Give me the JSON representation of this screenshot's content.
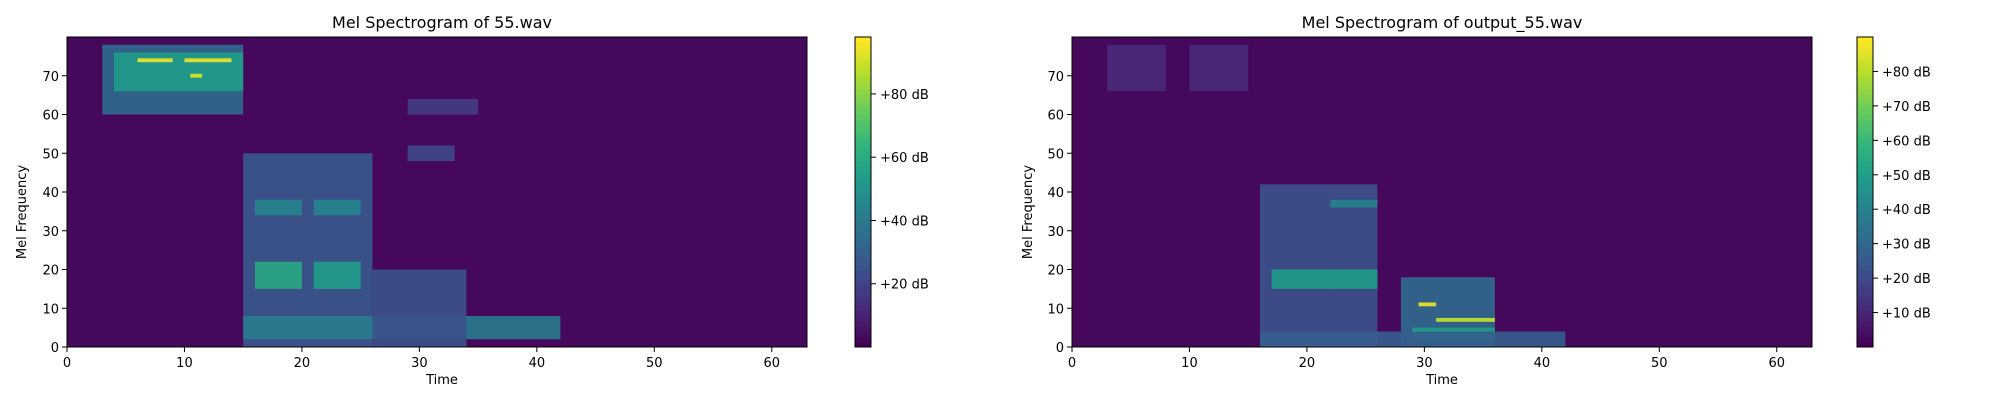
{
  "chart_data": [
    {
      "type": "heatmap",
      "title": "Mel Spectrogram of 55.wav",
      "xlabel": "Time",
      "ylabel": "Mel Frequency",
      "x_ticks": [
        0,
        10,
        20,
        30,
        40,
        50,
        60
      ],
      "y_ticks": [
        0,
        10,
        20,
        30,
        40,
        50,
        60,
        70
      ],
      "xlim": [
        0,
        63
      ],
      "ylim": [
        0,
        80
      ],
      "colormap": "viridis",
      "colorbar": {
        "format": "%+2.0f dB",
        "range": [
          0,
          98
        ],
        "ticks": [
          20,
          40,
          60,
          80
        ],
        "tick_labels": [
          "+20 dB",
          "+40 dB",
          "+60 dB",
          "+80 dB"
        ]
      },
      "energy_blobs": [
        {
          "t": [
            3,
            15
          ],
          "m": [
            60,
            78
          ],
          "level": 0.35
        },
        {
          "t": [
            4,
            15
          ],
          "m": [
            66,
            76
          ],
          "level": 0.55
        },
        {
          "t": [
            6,
            9
          ],
          "m": [
            73.5,
            74.5
          ],
          "level": 0.98
        },
        {
          "t": [
            10,
            14
          ],
          "m": [
            73.5,
            74.5
          ],
          "level": 0.98
        },
        {
          "t": [
            10.5,
            11.5
          ],
          "m": [
            69.5,
            70.5
          ],
          "level": 0.95
        },
        {
          "t": [
            15,
            26
          ],
          "m": [
            0,
            50
          ],
          "level": 0.28
        },
        {
          "t": [
            16,
            20
          ],
          "m": [
            15,
            22
          ],
          "level": 0.6
        },
        {
          "t": [
            21,
            25
          ],
          "m": [
            15,
            22
          ],
          "level": 0.55
        },
        {
          "t": [
            16,
            20
          ],
          "m": [
            34,
            38
          ],
          "level": 0.45
        },
        {
          "t": [
            21,
            25
          ],
          "m": [
            34,
            38
          ],
          "level": 0.45
        },
        {
          "t": [
            15,
            42
          ],
          "m": [
            2,
            8
          ],
          "level": 0.42
        },
        {
          "t": [
            26,
            34
          ],
          "m": [
            0,
            20
          ],
          "level": 0.25
        },
        {
          "t": [
            29,
            33
          ],
          "m": [
            48,
            52
          ],
          "level": 0.22
        },
        {
          "t": [
            29,
            35
          ],
          "m": [
            60,
            64
          ],
          "level": 0.18
        }
      ]
    },
    {
      "type": "heatmap",
      "title": "Mel Spectrogram of output_55.wav",
      "xlabel": "Time",
      "ylabel": "Mel Frequency",
      "x_ticks": [
        0,
        10,
        20,
        30,
        40,
        50,
        60
      ],
      "y_ticks": [
        0,
        10,
        20,
        30,
        40,
        50,
        60,
        70
      ],
      "xlim": [
        0,
        63
      ],
      "ylim": [
        0,
        80
      ],
      "colormap": "viridis",
      "colorbar": {
        "format": "%+2.0f dB",
        "range": [
          0,
          90
        ],
        "ticks": [
          10,
          20,
          30,
          40,
          50,
          60,
          70,
          80
        ],
        "tick_labels": [
          "+10 dB",
          "+20 dB",
          "+30 dB",
          "+40 dB",
          "+50 dB",
          "+60 dB",
          "+70 dB",
          "+80 dB"
        ]
      },
      "energy_blobs": [
        {
          "t": [
            3,
            8
          ],
          "m": [
            66,
            78
          ],
          "level": 0.12
        },
        {
          "t": [
            10,
            15
          ],
          "m": [
            66,
            78
          ],
          "level": 0.12
        },
        {
          "t": [
            16,
            26
          ],
          "m": [
            0,
            42
          ],
          "level": 0.25
        },
        {
          "t": [
            17,
            22
          ],
          "m": [
            15,
            20
          ],
          "level": 0.55
        },
        {
          "t": [
            22,
            26
          ],
          "m": [
            15,
            20
          ],
          "level": 0.55
        },
        {
          "t": [
            22,
            26
          ],
          "m": [
            36,
            38
          ],
          "level": 0.45
        },
        {
          "t": [
            28,
            36
          ],
          "m": [
            0,
            18
          ],
          "level": 0.35
        },
        {
          "t": [
            29.5,
            31
          ],
          "m": [
            10.5,
            11.5
          ],
          "level": 0.98
        },
        {
          "t": [
            31,
            36
          ],
          "m": [
            6.5,
            7.5
          ],
          "level": 0.92
        },
        {
          "t": [
            29,
            36
          ],
          "m": [
            2,
            5
          ],
          "level": 0.55
        },
        {
          "t": [
            16,
            42
          ],
          "m": [
            0,
            4
          ],
          "level": 0.3
        }
      ]
    }
  ]
}
